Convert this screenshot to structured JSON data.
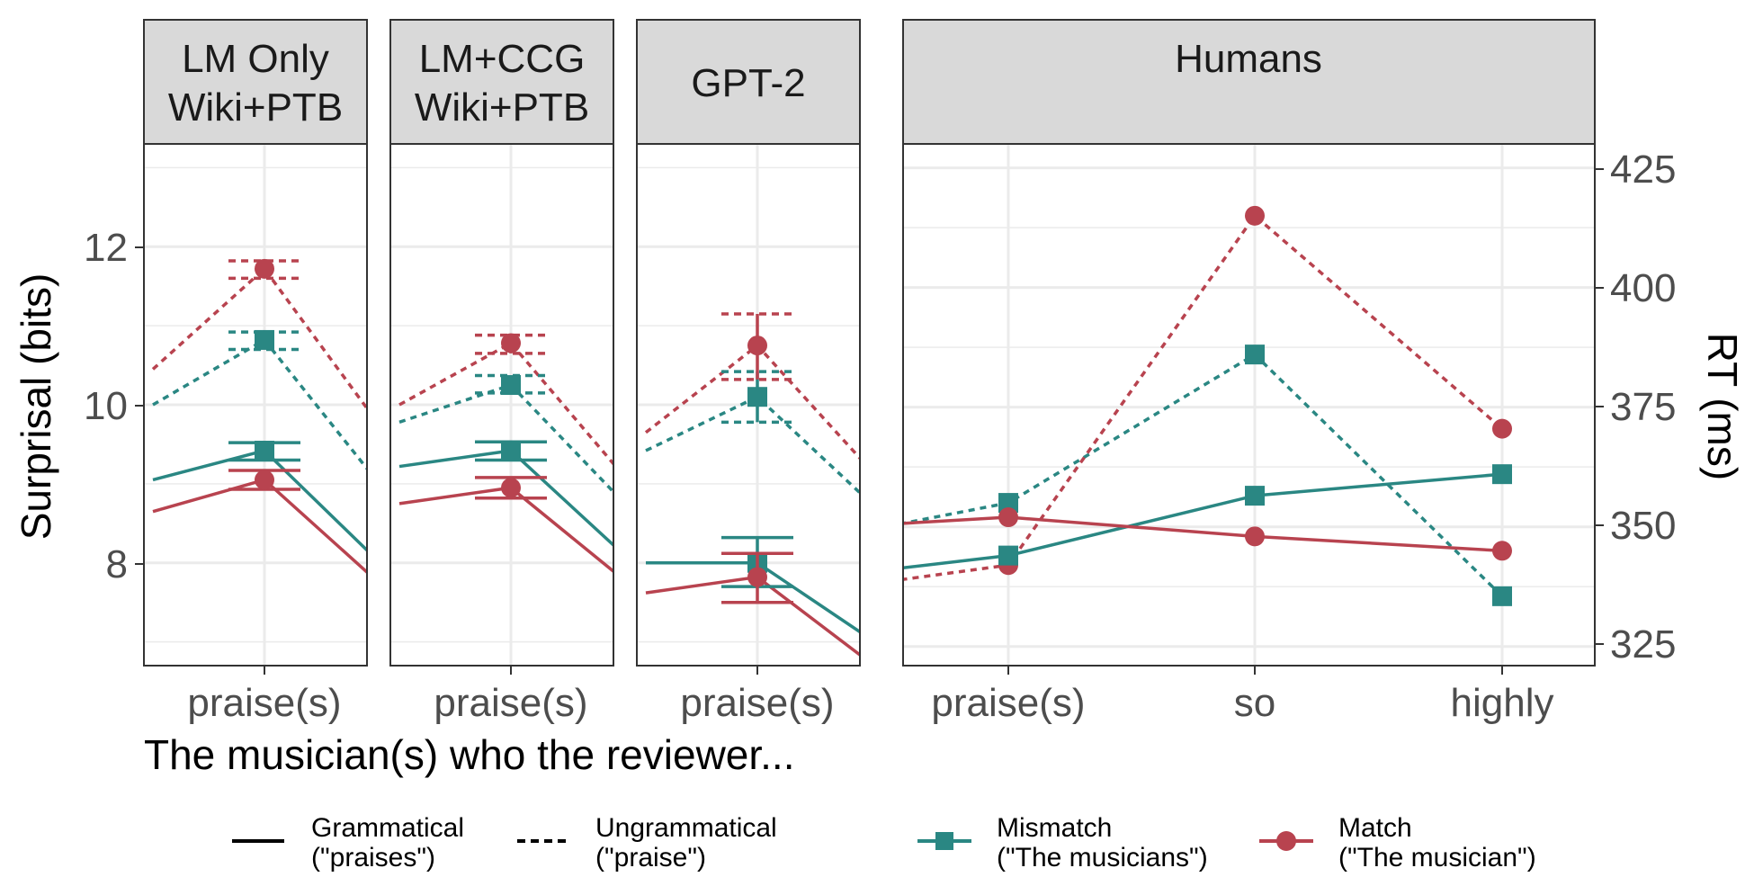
{
  "colors": {
    "mismatch": "#2a8783",
    "match": "#b8434f",
    "strip_bg": "#d9d9d9",
    "grid": "#ebebeb"
  },
  "panels": [
    {
      "id": "lm-only",
      "strip": [
        "LM Only",
        "Wiki+PTB"
      ]
    },
    {
      "id": "lm-ccg",
      "strip": [
        "LM+CCG",
        "Wiki+PTB"
      ]
    },
    {
      "id": "gpt2",
      "strip": [
        "GPT-2"
      ]
    },
    {
      "id": "humans",
      "strip": [
        "Humans"
      ]
    }
  ],
  "axes": {
    "left_title": "Surprisal (bits)",
    "right_title": "RT (ms)",
    "bottom_title": "The musician(s) who the reviewer...",
    "left_ticks": [
      "8",
      "10",
      "12"
    ],
    "right_ticks": [
      "325",
      "350",
      "375",
      "400",
      "425"
    ],
    "model_tick": "praise(s)",
    "human_ticks": [
      "praise(s)",
      "so",
      "highly"
    ]
  },
  "legend": {
    "grammatical": [
      "Grammatical",
      "(\"praises\")"
    ],
    "ungrammatical": [
      "Ungrammatical",
      "(\"praise\")"
    ],
    "mismatch": [
      "Mismatch",
      "(\"The musicians\")"
    ],
    "match": [
      "Match",
      "(\"The musician\")"
    ]
  },
  "chart_data": [
    {
      "type": "line",
      "title": "LM Only Wiki+PTB",
      "ylabel": "Surprisal (bits)",
      "ylim": [
        6.7,
        13.3
      ],
      "categories": [
        "praise(s)"
      ],
      "series": [
        {
          "name": "Mismatch, Ungrammatical",
          "values": [
            10.82
          ],
          "ci": [
            [
              10.7,
              10.92
            ]
          ],
          "prev": 10.0,
          "next": 9.05
        },
        {
          "name": "Match, Ungrammatical",
          "values": [
            11.72
          ],
          "ci": [
            [
              11.6,
              11.82
            ]
          ],
          "prev": 10.45,
          "next": 9.8
        },
        {
          "name": "Mismatch, Grammatical",
          "values": [
            9.42
          ],
          "ci": [
            [
              9.3,
              9.52
            ]
          ],
          "prev": 9.05,
          "next": 8.05
        },
        {
          "name": "Match, Grammatical",
          "values": [
            9.05
          ],
          "ci": [
            [
              8.93,
              9.17
            ]
          ],
          "prev": 8.65,
          "next": 7.78
        }
      ]
    },
    {
      "type": "line",
      "title": "LM+CCG Wiki+PTB",
      "ylabel": "Surprisal (bits)",
      "ylim": [
        6.7,
        13.3
      ],
      "categories": [
        "praise(s)"
      ],
      "series": [
        {
          "name": "Mismatch, Ungrammatical",
          "values": [
            10.25
          ],
          "ci": [
            [
              10.15,
              10.37
            ]
          ],
          "prev": 9.78,
          "next": 8.78
        },
        {
          "name": "Match, Ungrammatical",
          "values": [
            10.78
          ],
          "ci": [
            [
              10.65,
              10.88
            ]
          ],
          "prev": 10.0,
          "next": 9.12
        },
        {
          "name": "Mismatch, Grammatical",
          "values": [
            9.42
          ],
          "ci": [
            [
              9.3,
              9.53
            ]
          ],
          "prev": 9.22,
          "next": 8.12
        },
        {
          "name": "Match, Grammatical",
          "values": [
            8.95
          ],
          "ci": [
            [
              8.82,
              9.08
            ]
          ],
          "prev": 8.75,
          "next": 7.8
        }
      ]
    },
    {
      "type": "line",
      "title": "GPT-2",
      "ylabel": "Surprisal (bits)",
      "ylim": [
        6.7,
        13.3
      ],
      "categories": [
        "praise(s)"
      ],
      "series": [
        {
          "name": "Mismatch, Ungrammatical",
          "values": [
            10.1
          ],
          "ci": [
            [
              9.78,
              10.42
            ]
          ],
          "prev": 9.42,
          "next": 8.78
        },
        {
          "name": "Match, Ungrammatical",
          "values": [
            10.75
          ],
          "ci": [
            [
              10.32,
              11.15
            ]
          ],
          "prev": 9.65,
          "next": 9.2
        },
        {
          "name": "Mismatch, Grammatical",
          "values": [
            8.0
          ],
          "ci": [
            [
              7.7,
              8.32
            ]
          ],
          "prev": 8.0,
          "next": 7.05
        },
        {
          "name": "Match, Grammatical",
          "values": [
            7.82
          ],
          "ci": [
            [
              7.5,
              8.12
            ]
          ],
          "prev": 7.62,
          "next": 6.75
        }
      ]
    },
    {
      "type": "line",
      "title": "Humans",
      "ylabel": "RT (ms)",
      "ylim": [
        321,
        430
      ],
      "categories": [
        "praise(s)",
        "so",
        "highly"
      ],
      "series": [
        {
          "name": "Mismatch, Ungrammatical",
          "values": [
            355,
            386,
            335.5
          ],
          "prev": 345
        },
        {
          "name": "Match, Ungrammatical",
          "values": [
            342,
            415,
            370.5
          ],
          "prev": 335
        },
        {
          "name": "Mismatch, Grammatical",
          "values": [
            344,
            356.5,
            361
          ],
          "prev": 338
        },
        {
          "name": "Match, Grammatical",
          "values": [
            352,
            348,
            345
          ],
          "prev": 349
        }
      ]
    }
  ]
}
